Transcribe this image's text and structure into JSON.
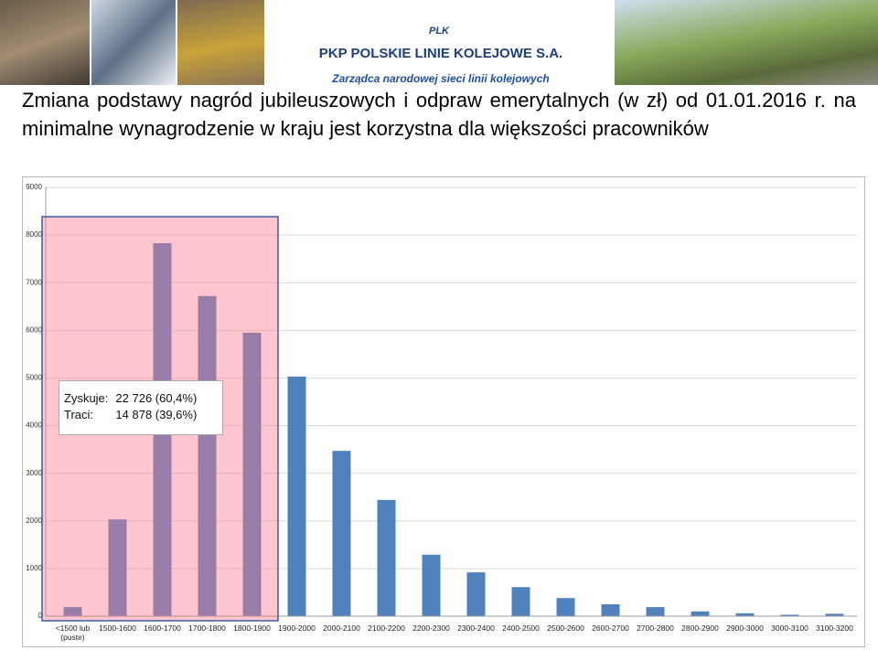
{
  "header": {
    "logo_text": "PKP POLSKIE LINIE KOLEJOWE S.A.",
    "badge": "PLK",
    "tagline": "Zarządca narodowej sieci linii kolejowych"
  },
  "title": "Zmiana podstawy nagród jubileuszowych i odpraw emerytalnych (w zł) od 01.01.2016 r. na minimalne wynagrodzenie w kraju jest korzystna dla większości pracowników",
  "chart_data": {
    "type": "bar",
    "categories": [
      "<1500 lub (puste)",
      "1500-1600",
      "1600-1700",
      "1700-1800",
      "1800-1900",
      "1900-2000",
      "2000-2100",
      "2100-2200",
      "2200-2300",
      "2300-2400",
      "2400-2500",
      "2500-2600",
      "2600-2700",
      "2700-2800",
      "2800-2900",
      "2900-3000",
      "3000-3100",
      "3100-3200"
    ],
    "series": [
      {
        "color": "#4f81bd",
        "values": [
          190,
          2030,
          7830,
          6720,
          5950,
          5030,
          3470,
          2440,
          1290,
          920,
          610,
          380,
          250,
          190,
          100,
          60,
          30,
          50
        ]
      }
    ],
    "ylim": [
      0,
      9000
    ],
    "yticks": [
      0,
      1000,
      2000,
      3000,
      4000,
      5000,
      6000,
      7000,
      8000,
      9000
    ],
    "grid": true,
    "annotations": [
      [
        "Zyskuje:",
        "22 726 (60,4%)"
      ],
      [
        "Traci:",
        "14 878 (39,6%)"
      ]
    ]
  }
}
